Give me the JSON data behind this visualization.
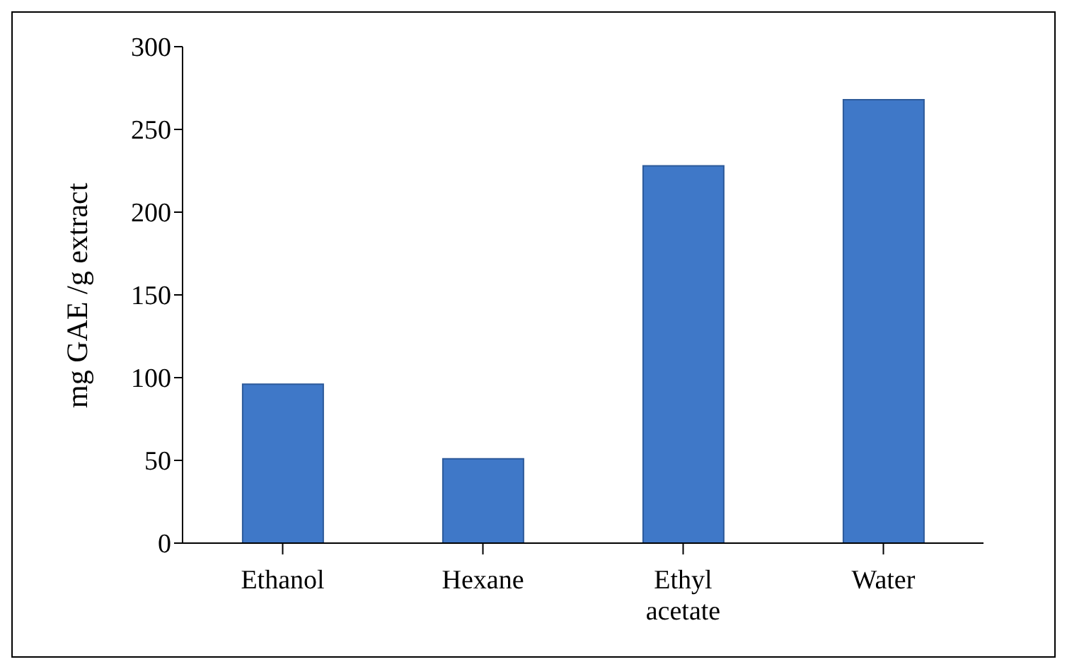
{
  "chart_data": {
    "type": "bar",
    "ylabel": "mg GAE /g extract",
    "categories": [
      "Ethanol",
      "Hexane",
      "Ethyl acetate",
      "Water"
    ],
    "values": [
      96,
      51,
      228,
      268
    ],
    "color": "#3f78c8",
    "ylim": [
      0,
      300
    ],
    "yticks": [
      0,
      50,
      100,
      150,
      200,
      250,
      300
    ],
    "grid": false,
    "legend": false
  }
}
